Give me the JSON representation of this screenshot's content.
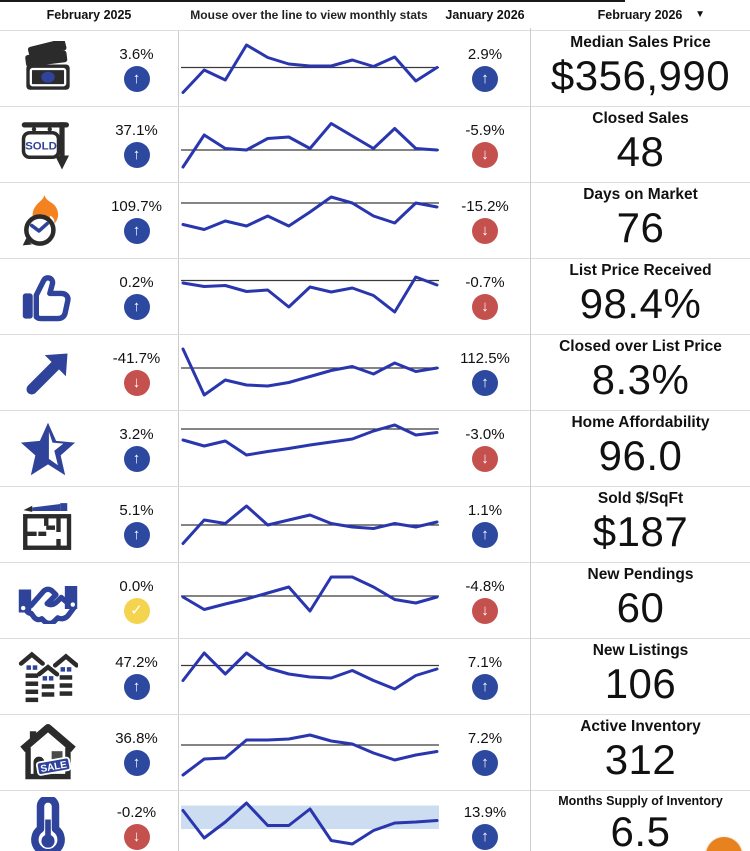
{
  "header": {
    "left_period_label": "February 2025",
    "hint": "Mouse over the line to view monthly stats",
    "right_period_label": "January 2026",
    "current_period_label": "February 2026"
  },
  "icon_glyphs": {
    "up": "↑",
    "down": "↓",
    "flat": "✓"
  },
  "colors": {
    "sparkline": "#2936ae",
    "reference_line": "#3a3a3a",
    "band": "#ccdcf1",
    "up_badge": "#2d489f",
    "down_badge": "#c5514e",
    "flat_badge": "#f4d44f",
    "icon_blue": "#2e4399",
    "icon_dark": "#2b2b2b",
    "flame_orange": "#f58220",
    "chat_orange": "#e8821e"
  },
  "rows": [
    {
      "metric": "Median Sales Price",
      "value": "$356,990",
      "icon": "money-bills-icon",
      "yoy_change": "3.6%",
      "yoy_direction": "up",
      "mom_change": "2.9%",
      "mom_direction": "up",
      "spark": {
        "points": [
          0.05,
          0.5,
          0.3,
          1.0,
          0.75,
          0.62,
          0.58,
          0.58,
          0.7,
          0.57,
          0.76,
          0.28,
          0.55
        ],
        "ref": 0.55
      }
    },
    {
      "metric": "Closed Sales",
      "value": "48",
      "icon": "sold-sign-icon",
      "yoy_change": "37.1%",
      "yoy_direction": "up",
      "mom_change": "-5.9%",
      "mom_direction": "down",
      "spark": {
        "points": [
          0.08,
          0.72,
          0.45,
          0.42,
          0.65,
          0.68,
          0.45,
          0.95,
          0.7,
          0.45,
          0.85,
          0.45,
          0.42
        ],
        "ref": 0.42
      }
    },
    {
      "metric": "Days on Market",
      "value": "76",
      "icon": "days-on-market-icon",
      "yoy_change": "109.7%",
      "yoy_direction": "up",
      "mom_change": "-15.2%",
      "mom_direction": "down",
      "spark": {
        "points": [
          0.45,
          0.35,
          0.52,
          0.42,
          0.62,
          0.42,
          0.7,
          1.0,
          0.88,
          0.62,
          0.48,
          0.88,
          0.8
        ],
        "ref": 0.88
      }
    },
    {
      "metric": "List Price Received",
      "value": "98.4%",
      "icon": "thumbs-up-icon",
      "yoy_change": "0.2%",
      "yoy_direction": "up",
      "mom_change": "-0.7%",
      "mom_direction": "down",
      "spark": {
        "points": [
          0.8,
          0.73,
          0.75,
          0.63,
          0.66,
          0.32,
          0.72,
          0.62,
          0.7,
          0.55,
          0.22,
          0.92,
          0.76
        ],
        "ref": 0.85
      }
    },
    {
      "metric": "Closed over List Price",
      "value": "8.3%",
      "icon": "trend-up-arrow-icon",
      "yoy_change": "-41.7%",
      "yoy_direction": "down",
      "mom_change": "112.5%",
      "mom_direction": "up",
      "spark": {
        "points": [
          1.0,
          0.08,
          0.38,
          0.28,
          0.26,
          0.33,
          0.45,
          0.57,
          0.65,
          0.5,
          0.72,
          0.55,
          0.62
        ],
        "ref": 0.62
      }
    },
    {
      "metric": "Home Affordability",
      "value": "96.0",
      "icon": "star-icon",
      "yoy_change": "3.2%",
      "yoy_direction": "up",
      "mom_change": "-3.0%",
      "mom_direction": "down",
      "spark": {
        "points": [
          0.7,
          0.58,
          0.68,
          0.4,
          0.47,
          0.53,
          0.6,
          0.66,
          0.72,
          0.88,
          1.0,
          0.8,
          0.85
        ],
        "ref": 0.92
      }
    },
    {
      "metric": "Sold $/SqFt",
      "value": "$187",
      "icon": "floorplan-pencil-icon",
      "yoy_change": "5.1%",
      "yoy_direction": "up",
      "mom_change": "1.1%",
      "mom_direction": "up",
      "spark": {
        "points": [
          0.15,
          0.62,
          0.55,
          0.9,
          0.52,
          0.62,
          0.72,
          0.55,
          0.48,
          0.45,
          0.55,
          0.48,
          0.58
        ],
        "ref": 0.52
      }
    },
    {
      "metric": "New Pendings",
      "value": "60",
      "icon": "handshake-icon",
      "yoy_change": "0.0%",
      "yoy_direction": "flat",
      "mom_change": "-4.8%",
      "mom_direction": "down",
      "spark": {
        "points": [
          0.6,
          0.35,
          0.46,
          0.56,
          0.68,
          0.8,
          0.32,
          1.0,
          1.0,
          0.8,
          0.55,
          0.48,
          0.6
        ],
        "ref": 0.62
      }
    },
    {
      "metric": "New Listings",
      "value": "106",
      "icon": "houses-icon",
      "yoy_change": "47.2%",
      "yoy_direction": "up",
      "mom_change": "7.1%",
      "mom_direction": "up",
      "spark": {
        "points": [
          0.45,
          1.0,
          0.58,
          1.0,
          0.7,
          0.58,
          0.52,
          0.5,
          0.65,
          0.45,
          0.28,
          0.55,
          0.68
        ],
        "ref": 0.75
      }
    },
    {
      "metric": "Active Inventory",
      "value": "312",
      "icon": "house-sale-icon",
      "yoy_change": "36.8%",
      "yoy_direction": "up",
      "mom_change": "7.2%",
      "mom_direction": "up",
      "spark": {
        "points": [
          0.08,
          0.4,
          0.42,
          0.78,
          0.78,
          0.8,
          0.88,
          0.76,
          0.7,
          0.52,
          0.38,
          0.48,
          0.55
        ],
        "ref": 0.68
      }
    },
    {
      "metric": "Months Supply of Inventory",
      "value": "6.5",
      "icon": "thermometer-icon",
      "yoy_change": "-0.2%",
      "yoy_direction": "down",
      "mom_change": "13.9%",
      "mom_direction": "up",
      "spark": {
        "points": [
          0.85,
          0.3,
          0.62,
          1.0,
          0.55,
          0.55,
          0.88,
          0.25,
          0.18,
          0.45,
          0.6,
          0.62,
          0.65
        ],
        "ref": null,
        "band": [
          0.48,
          0.95
        ]
      }
    }
  ]
}
